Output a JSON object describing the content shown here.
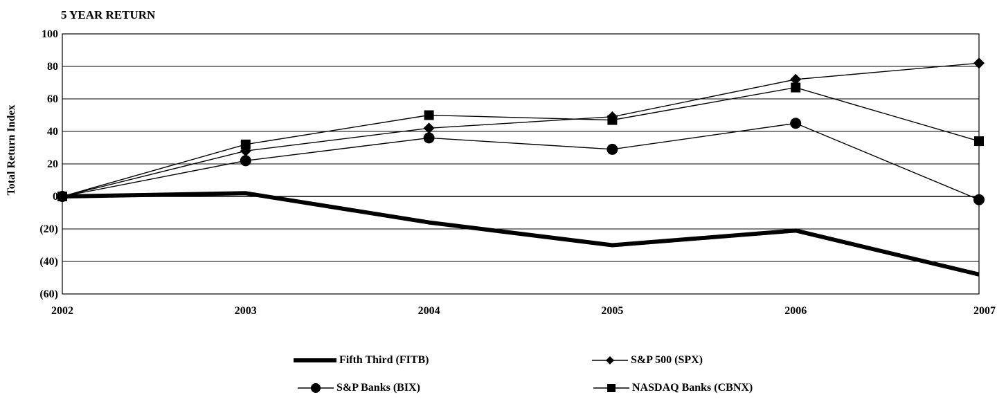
{
  "chart_data": {
    "type": "line",
    "title": "5 YEAR RETURN",
    "xlabel": "",
    "ylabel": "Total Return Index",
    "x": [
      "2002",
      "2003",
      "2004",
      "2005",
      "2006",
      "2007"
    ],
    "ylim": [
      -60,
      100
    ],
    "yticks": [
      100,
      80,
      60,
      40,
      20,
      0,
      -20,
      -40,
      -60
    ],
    "ytick_labels": [
      "100",
      "80",
      "60",
      "40",
      "20",
      "0",
      "(20)",
      "(40)",
      "(60)"
    ],
    "grid": true,
    "legend_position": "bottom",
    "series": [
      {
        "name": "Fifth Third (FITB)",
        "values": [
          0,
          2,
          -16,
          -30,
          -21,
          -48
        ],
        "marker": "none",
        "color": "#000000"
      },
      {
        "name": "S&P 500 (SPX)",
        "values": [
          0,
          28,
          42,
          49,
          72,
          82
        ],
        "marker": "diamond",
        "color": "#000000"
      },
      {
        "name": "S&P Banks (BIX)",
        "values": [
          0,
          22,
          36,
          29,
          45,
          -2
        ],
        "marker": "circle",
        "color": "#000000"
      },
      {
        "name": "NASDAQ Banks (CBNX)",
        "values": [
          0,
          32,
          50,
          47,
          67,
          34
        ],
        "marker": "square",
        "color": "#000000"
      }
    ]
  }
}
